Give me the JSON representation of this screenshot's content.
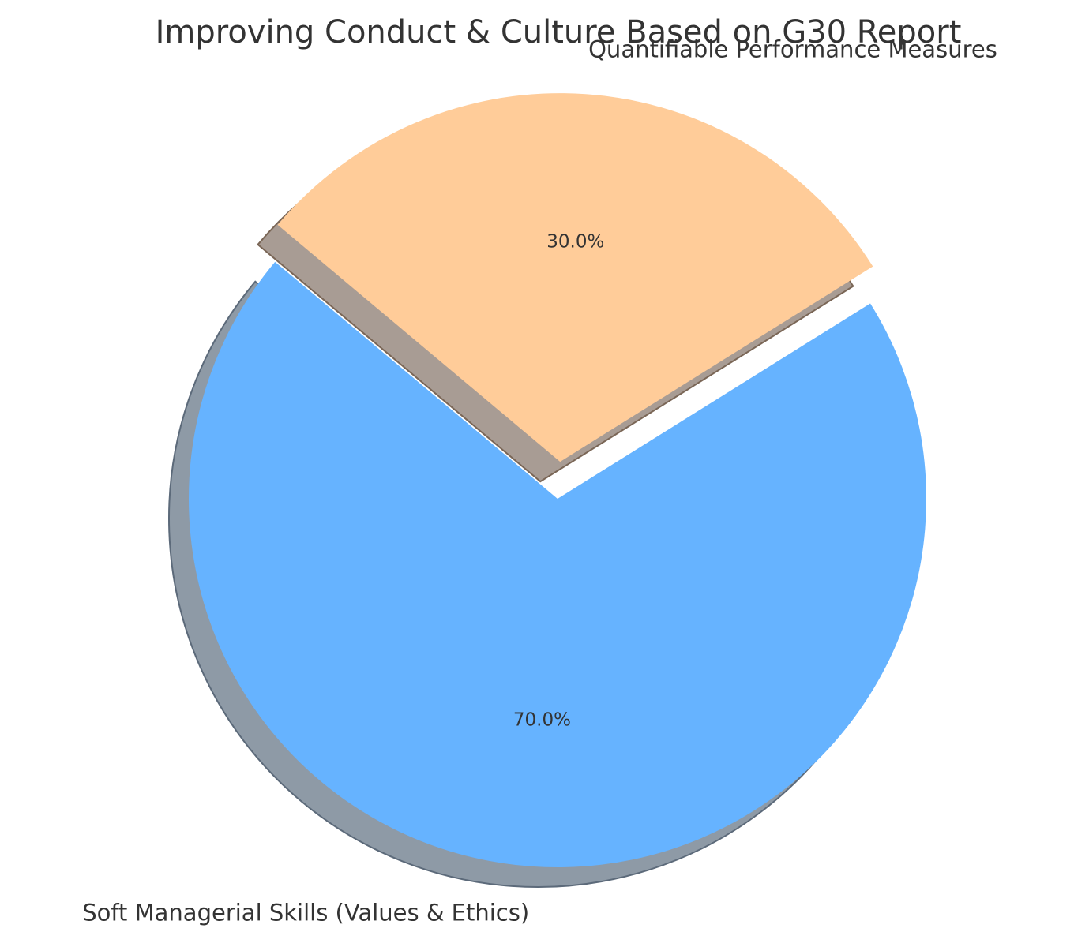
{
  "chart_data": {
    "type": "pie",
    "title": "Improving Conduct & Culture Based on G30 Report",
    "categories": [
      "Soft Managerial Skills (Values & Ethics)",
      "Quantifiable Performance Measures"
    ],
    "values": [
      70,
      30
    ],
    "percent_labels": [
      "70.0%",
      "30.0%"
    ],
    "colors": [
      "#66b3ff",
      "#ffcc99"
    ],
    "shadow": true,
    "exploded": "Quantifiable Performance Measures",
    "legend": false
  }
}
